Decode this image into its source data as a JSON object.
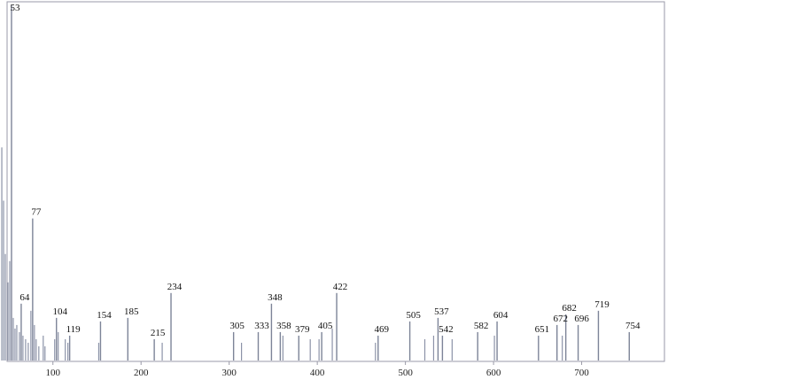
{
  "chart_data": {
    "type": "bar",
    "title": "",
    "xlabel": "",
    "ylabel": "",
    "xlim": [
      40,
      770
    ],
    "ylim": [
      0,
      100
    ],
    "x_ticks": [
      "100",
      "200",
      "300",
      "400",
      "500",
      "600",
      "700"
    ],
    "labeled_peaks": [
      {
        "label": "53",
        "x": 53,
        "y": 100
      },
      {
        "label": "64",
        "x": 64,
        "y": 16
      },
      {
        "label": "77",
        "x": 77,
        "y": 40
      },
      {
        "label": "104",
        "x": 104,
        "y": 12
      },
      {
        "label": "119",
        "x": 119,
        "y": 7
      },
      {
        "label": "154",
        "x": 154,
        "y": 11
      },
      {
        "label": "185",
        "x": 185,
        "y": 12
      },
      {
        "label": "215",
        "x": 215,
        "y": 6
      },
      {
        "label": "234",
        "x": 234,
        "y": 19
      },
      {
        "label": "305",
        "x": 305,
        "y": 8
      },
      {
        "label": "333",
        "x": 333,
        "y": 8
      },
      {
        "label": "348",
        "x": 348,
        "y": 16
      },
      {
        "label": "358",
        "x": 358,
        "y": 8
      },
      {
        "label": "379",
        "x": 379,
        "y": 7
      },
      {
        "label": "405",
        "x": 405,
        "y": 8
      },
      {
        "label": "422",
        "x": 422,
        "y": 19
      },
      {
        "label": "469",
        "x": 469,
        "y": 7
      },
      {
        "label": "505",
        "x": 505,
        "y": 11
      },
      {
        "label": "537",
        "x": 537,
        "y": 12
      },
      {
        "label": "542",
        "x": 542,
        "y": 7
      },
      {
        "label": "582",
        "x": 582,
        "y": 8
      },
      {
        "label": "604",
        "x": 604,
        "y": 11
      },
      {
        "label": "651",
        "x": 651,
        "y": 7
      },
      {
        "label": "672",
        "x": 672,
        "y": 10
      },
      {
        "label": "682",
        "x": 682,
        "y": 13
      },
      {
        "label": "696",
        "x": 696,
        "y": 10
      },
      {
        "label": "719",
        "x": 719,
        "y": 14
      },
      {
        "label": "754",
        "x": 754,
        "y": 8
      }
    ],
    "minor_peaks": [
      {
        "x": 42,
        "y": 60
      },
      {
        "x": 44,
        "y": 45
      },
      {
        "x": 46,
        "y": 30
      },
      {
        "x": 49,
        "y": 22
      },
      {
        "x": 51,
        "y": 28
      },
      {
        "x": 55,
        "y": 12
      },
      {
        "x": 57,
        "y": 9
      },
      {
        "x": 59,
        "y": 10
      },
      {
        "x": 62,
        "y": 8
      },
      {
        "x": 66,
        "y": 7
      },
      {
        "x": 69,
        "y": 6
      },
      {
        "x": 72,
        "y": 5
      },
      {
        "x": 75,
        "y": 14
      },
      {
        "x": 79,
        "y": 10
      },
      {
        "x": 81,
        "y": 6
      },
      {
        "x": 84,
        "y": 4
      },
      {
        "x": 89,
        "y": 7
      },
      {
        "x": 91,
        "y": 4
      },
      {
        "x": 102,
        "y": 6
      },
      {
        "x": 106,
        "y": 8
      },
      {
        "x": 114,
        "y": 6
      },
      {
        "x": 117,
        "y": 5
      },
      {
        "x": 152,
        "y": 5
      },
      {
        "x": 224,
        "y": 5
      },
      {
        "x": 314,
        "y": 5
      },
      {
        "x": 361,
        "y": 7
      },
      {
        "x": 392,
        "y": 6
      },
      {
        "x": 402,
        "y": 6
      },
      {
        "x": 417,
        "y": 9
      },
      {
        "x": 466,
        "y": 5
      },
      {
        "x": 522,
        "y": 6
      },
      {
        "x": 532,
        "y": 7
      },
      {
        "x": 553,
        "y": 6
      },
      {
        "x": 601,
        "y": 7
      },
      {
        "x": 678,
        "y": 7
      }
    ]
  }
}
